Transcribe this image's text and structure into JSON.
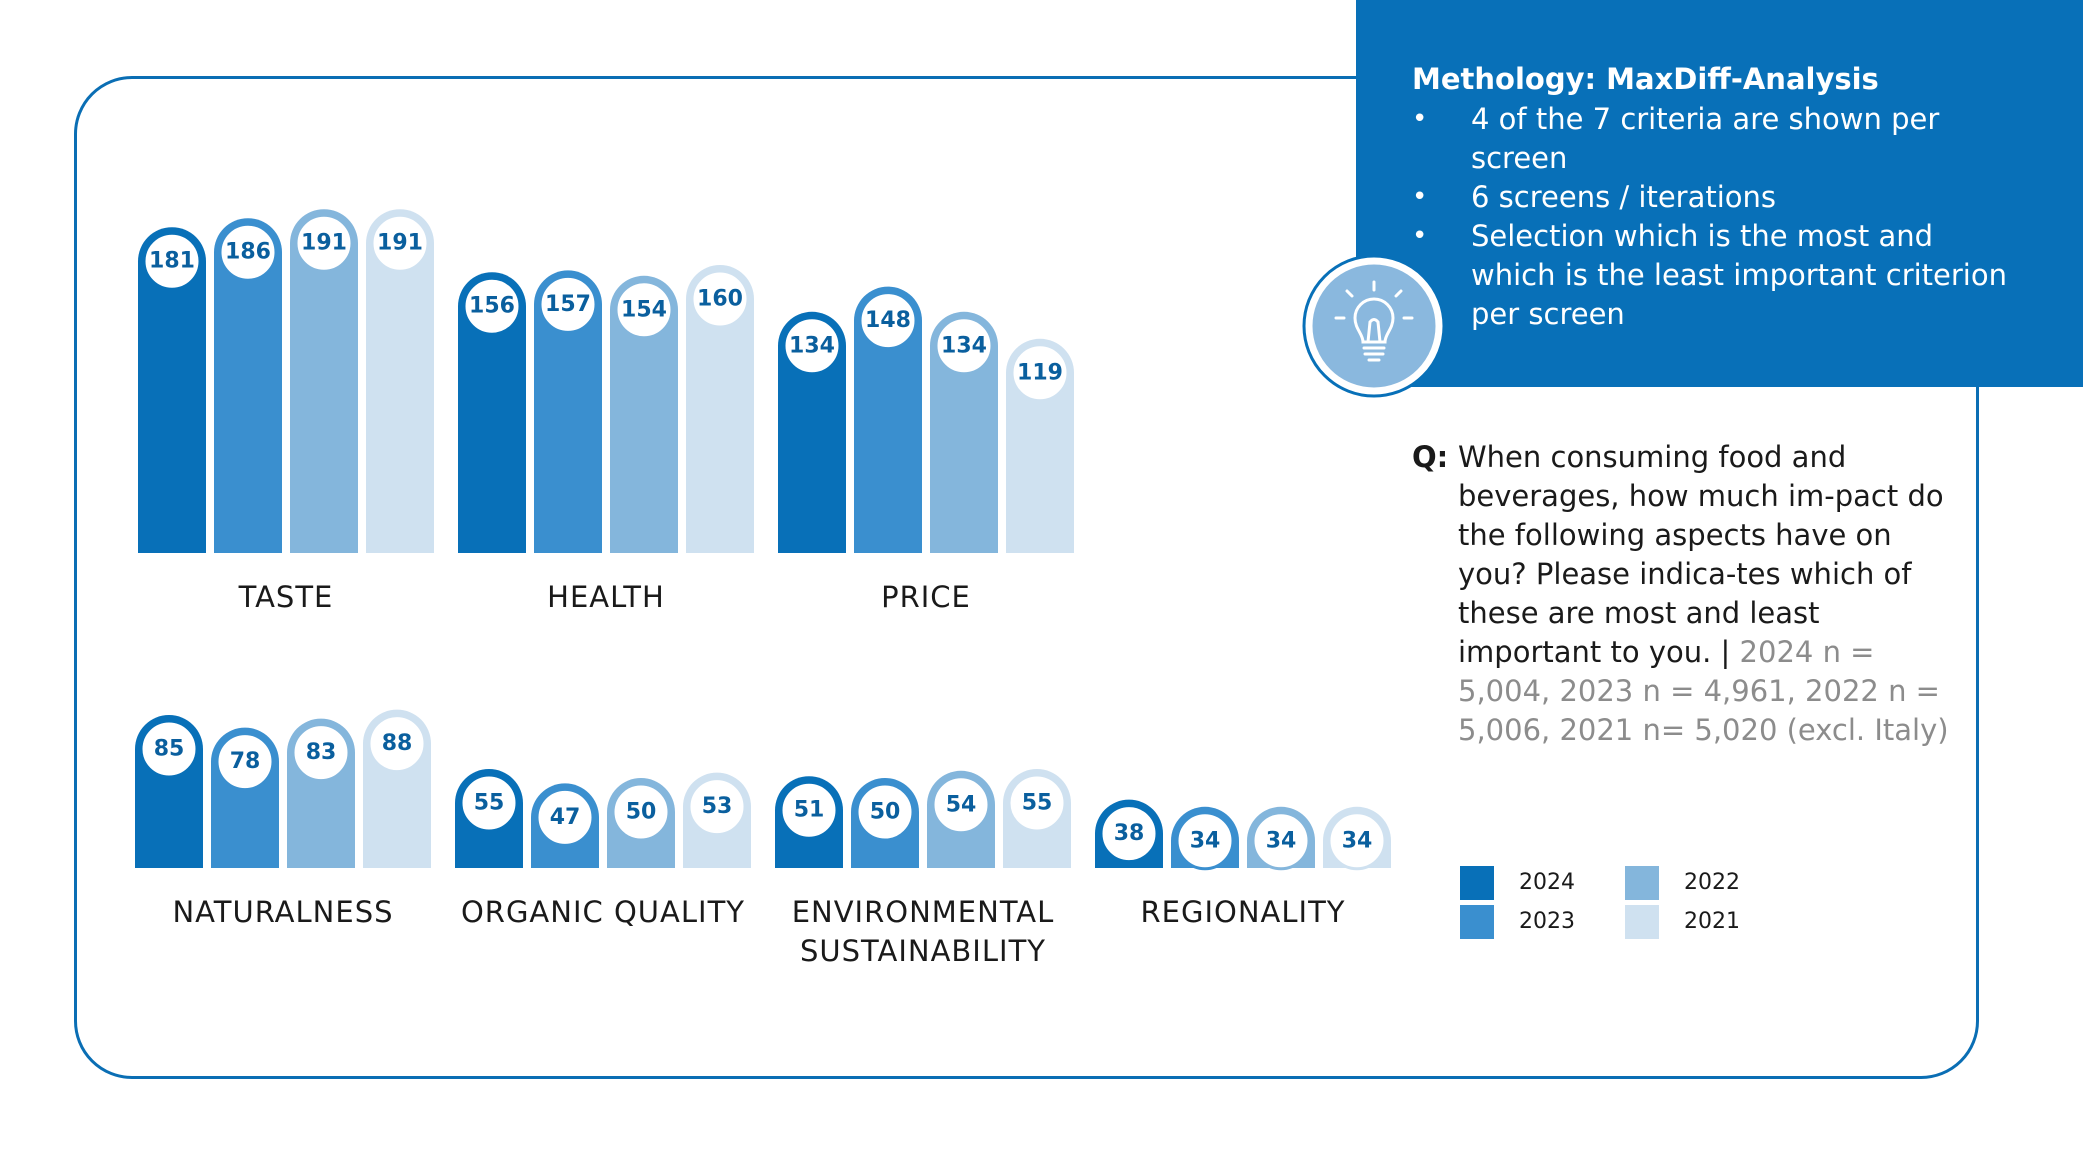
{
  "colors": {
    "accent": "#0870b8",
    "border": "#0a6eb4",
    "series": [
      "#0870b8",
      "#3a8fcf",
      "#84b6dc",
      "#cfe1f0"
    ]
  },
  "methodology": {
    "title": "Methology: MaxDiff-Analysis",
    "bullets": [
      "4 of the 7 criteria are shown per screen",
      "6 screens / iterations",
      "Selection which is the most and which is the least important criterion per screen"
    ],
    "icon": "lightbulb-icon"
  },
  "question": {
    "prefix": "Q:",
    "text": "When consuming food and beverages, how much im-pact do the following aspects have on you? Please indica-tes which of these are most and least important to you. |",
    "sample": "2024 n = 5,004, 2023 n = 4,961, 2022 n = 5,006, 2021 n= 5,020 (excl. Italy)"
  },
  "legend": [
    {
      "label": "2024",
      "color": "#0870b8"
    },
    {
      "label": "2022",
      "color": "#84b6dc"
    },
    {
      "label": "2023",
      "color": "#3a8fcf"
    },
    {
      "label": "2021",
      "color": "#cfe1f0"
    }
  ],
  "chart_data": {
    "type": "bar",
    "series_names": [
      "2024",
      "2023",
      "2022",
      "2021"
    ],
    "groups": [
      {
        "category": "TASTE",
        "values": [
          181,
          186,
          191,
          191
        ]
      },
      {
        "category": "HEALTH",
        "values": [
          156,
          157,
          154,
          160
        ]
      },
      {
        "category": "PRICE",
        "values": [
          134,
          148,
          134,
          119
        ]
      },
      {
        "category": "NATURALNESS",
        "values": [
          85,
          78,
          83,
          88
        ]
      },
      {
        "category": "ORGANIC QUALITY",
        "values": [
          55,
          47,
          50,
          53
        ]
      },
      {
        "category": "ENVIRONMENTAL SUSTAINABILITY",
        "values": [
          51,
          50,
          54,
          55
        ]
      },
      {
        "category": "REGIONALITY",
        "values": [
          38,
          34,
          34,
          34
        ]
      }
    ],
    "grid": false,
    "legend_position": "right"
  }
}
